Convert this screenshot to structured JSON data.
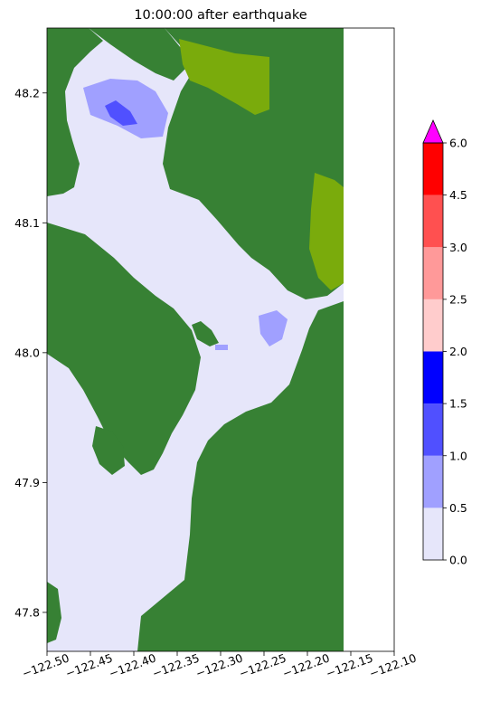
{
  "chart_data": {
    "type": "heatmap",
    "title": "10:00:00 after earthquake",
    "xlabel": "",
    "ylabel": "",
    "xlim": [
      -122.5,
      -122.1
    ],
    "ylim": [
      47.77,
      48.25
    ],
    "grid": false,
    "xticks": [
      -122.5,
      -122.45,
      -122.4,
      -122.35,
      -122.3,
      -122.25,
      -122.2,
      -122.15,
      -122.1
    ],
    "xtick_labels": [
      "−122.50",
      "−122.45",
      "−122.40",
      "−122.35",
      "−122.30",
      "−122.25",
      "−122.20",
      "−122.15",
      "−122.10"
    ],
    "yticks": [
      47.8,
      47.9,
      48.0,
      48.1,
      48.2
    ],
    "ytick_labels": [
      "47.8",
      "47.9",
      "48.0",
      "48.1",
      "48.2"
    ],
    "data_extent_east": -122.158,
    "land_color": "#378134",
    "nearshore_color": "#7aab0c",
    "colorbar": {
      "levels": [
        0.0,
        0.5,
        1.0,
        1.5,
        2.0,
        2.5,
        3.0,
        4.5,
        6.0
      ],
      "tick_labels": [
        "0.0",
        "0.5",
        "1.0",
        "1.5",
        "2.0",
        "2.5",
        "3.0",
        "4.5",
        "6.0"
      ],
      "colors": [
        "#e6e6fa",
        "#a0a0ff",
        "#5050ff",
        "#0000ff",
        "#ffcccc",
        "#ff9999",
        "#ff5050",
        "#ff0000"
      ],
      "extend_max_color": "#ff00ff"
    }
  }
}
